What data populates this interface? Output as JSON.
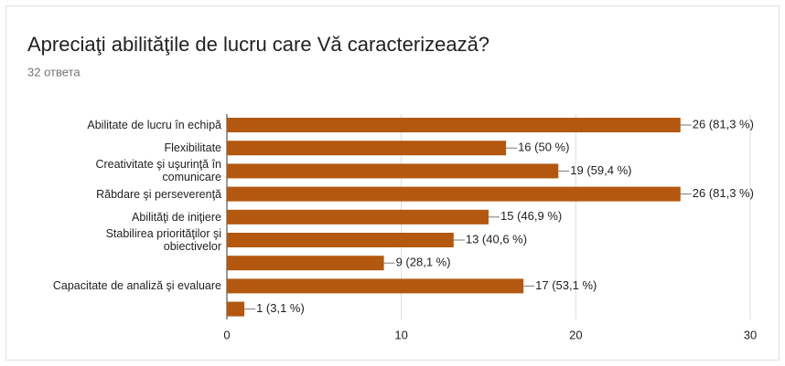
{
  "chart_data": {
    "type": "bar",
    "orientation": "horizontal",
    "title": "Apreciaţi abilităţile de lucru care Vă caracterizează?",
    "subtitle": "32 ответа",
    "categories": [
      "Abilitate de lucru în echipă",
      "Flexibilitate",
      "Creativitate şi uşurinţă în comunicare",
      "Răbdare şi perseverenţă",
      "Abilităţi de iniţiere",
      "Stabilirea priorităţilor şi obiectivelor",
      null,
      "Capacitate de analiză şi evaluare",
      null
    ],
    "values": [
      26,
      16,
      19,
      26,
      15,
      13,
      9,
      17,
      1
    ],
    "value_labels": [
      "26 (81,3 %)",
      "16 (50 %)",
      "19 (59,4 %)",
      "26 (81,3 %)",
      "15 (46,9 %)",
      "13 (40,6 %)",
      "9 (28,1 %)",
      "17 (53,1 %)",
      "1 (3,1 %)"
    ],
    "color": "#b3580e",
    "xlim": [
      0,
      30
    ],
    "xticks": [
      0,
      10,
      20,
      30
    ],
    "grid": true
  }
}
